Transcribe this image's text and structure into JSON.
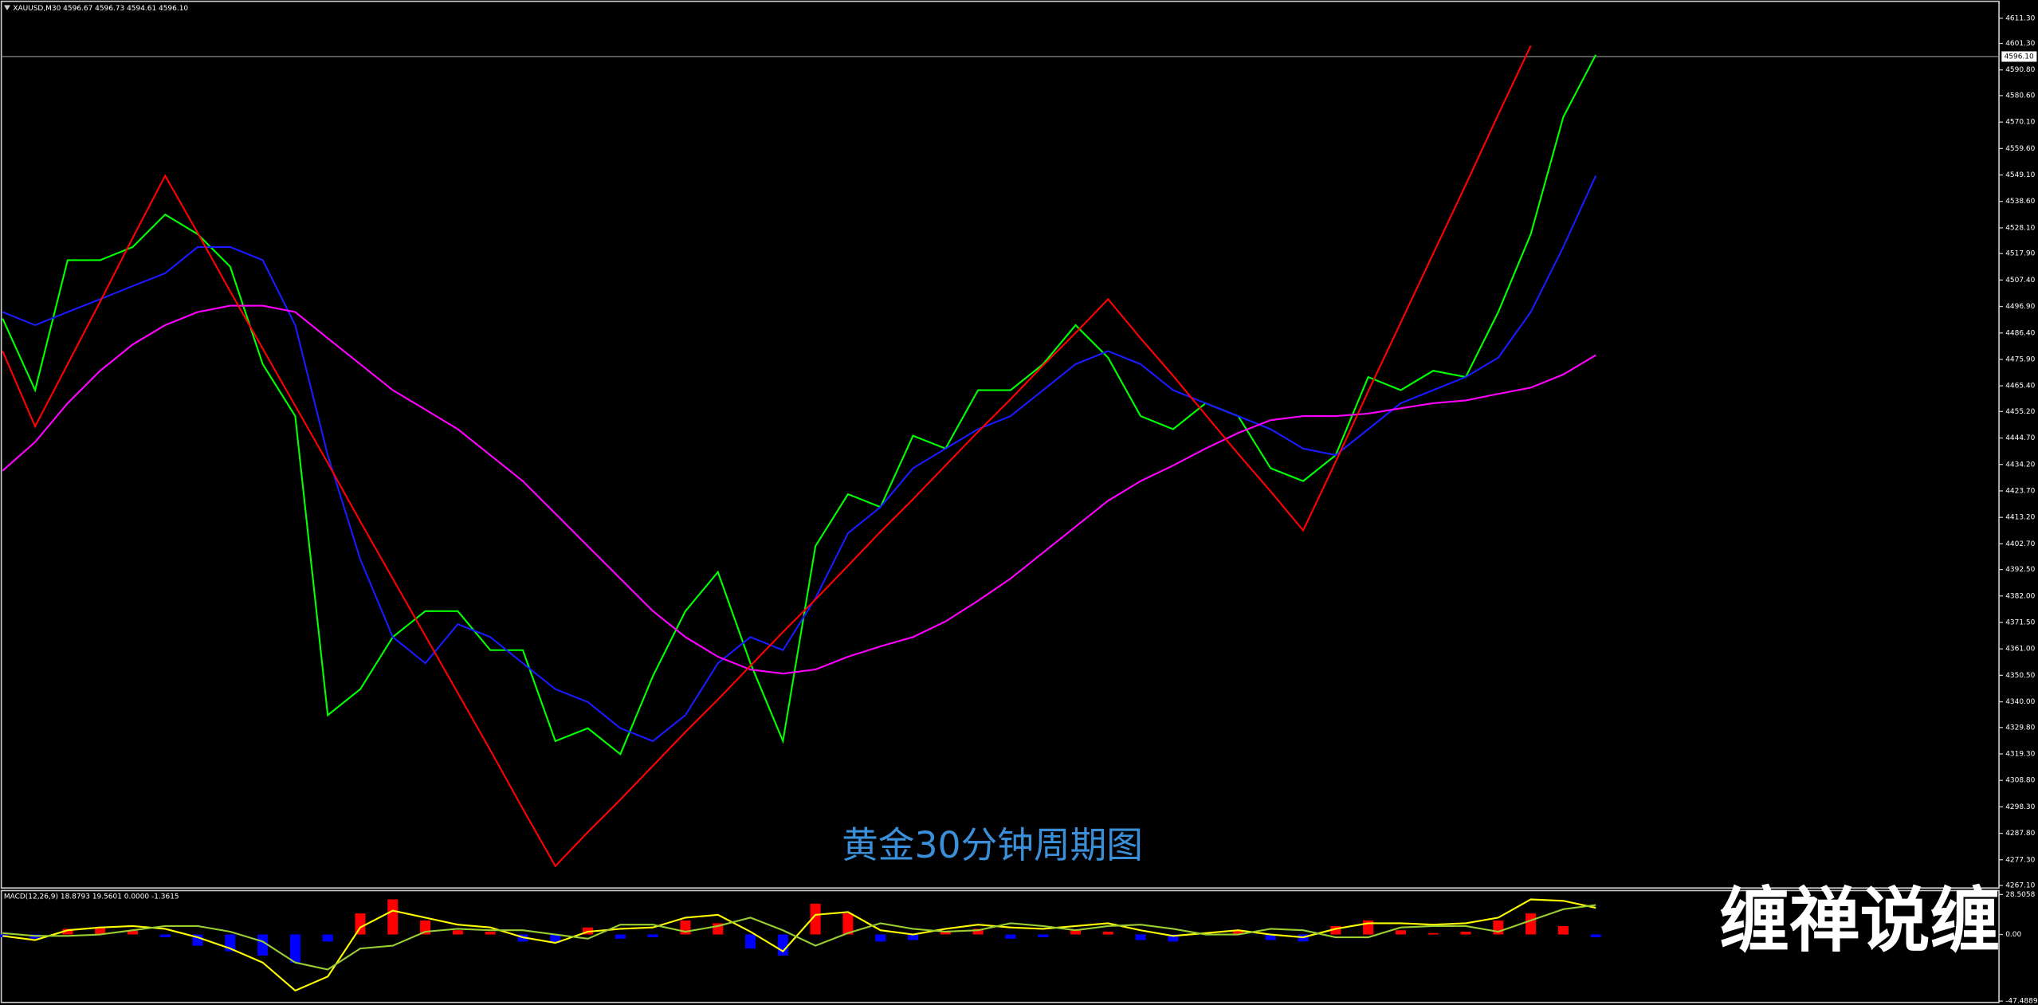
{
  "chart_data": [
    {
      "type": "line",
      "title": "XAUUSD,M30  4596.67 4596.73 4594.61 4596.10",
      "annotation": "黄金30分钟周期图",
      "ylim": [
        4266.1,
        4617.0
      ],
      "yticks": [
        {
          "value": 4611.3,
          "label": "4611.30"
        },
        {
          "value": 4601.3,
          "label": "4601.30"
        },
        {
          "value": 4590.8,
          "label": "4590.80"
        },
        {
          "value": 4580.6,
          "label": "4580.60"
        },
        {
          "value": 4570.1,
          "label": "4570.10"
        },
        {
          "value": 4559.6,
          "label": "4559.60"
        },
        {
          "value": 4549.1,
          "label": "4549.10"
        },
        {
          "value": 4538.6,
          "label": "4538.60"
        },
        {
          "value": 4528.1,
          "label": "4528.10"
        },
        {
          "value": 4517.9,
          "label": "4517.90"
        },
        {
          "value": 4507.4,
          "label": "4507.40"
        },
        {
          "value": 4496.9,
          "label": "4496.90"
        },
        {
          "value": 4486.4,
          "label": "4486.40"
        },
        {
          "value": 4475.9,
          "label": "4475.90"
        },
        {
          "value": 4465.4,
          "label": "4465.40"
        },
        {
          "value": 4455.2,
          "label": "4455.20"
        },
        {
          "value": 4444.7,
          "label": "4444.70"
        },
        {
          "value": 4434.2,
          "label": "4434.20"
        },
        {
          "value": 4423.7,
          "label": "4423.70"
        },
        {
          "value": 4413.2,
          "label": "4413.20"
        },
        {
          "value": 4402.7,
          "label": "4402.70"
        },
        {
          "value": 4392.5,
          "label": "4392.50"
        },
        {
          "value": 4382,
          "label": "4382.00"
        },
        {
          "value": 4371.5,
          "label": "4371.50"
        },
        {
          "value": 4361,
          "label": "4361.00"
        },
        {
          "value": 4350.5,
          "label": "4350.50"
        },
        {
          "value": 4340,
          "label": "4340.00"
        },
        {
          "value": 4329.8,
          "label": "4329.80"
        },
        {
          "value": 4319.3,
          "label": "4319.30"
        },
        {
          "value": 4308.8,
          "label": "4308.80"
        },
        {
          "value": 4298.3,
          "label": "4298.30"
        },
        {
          "value": 4287.8,
          "label": "4287.80"
        },
        {
          "value": 4277.3,
          "label": "4277.30"
        },
        {
          "value": 4267.1,
          "label": "4267.10"
        }
      ],
      "price_line": {
        "value": 4596.1,
        "label": "4596.10"
      },
      "series": [
        {
          "color": "#00ff00",
          "values": [
            4492.1,
            4463.7,
            4515.3,
            4515.3,
            4520.5,
            4533.4,
            4525.6,
            4512.7,
            4474.0,
            4453.4,
            4334.7,
            4345.0,
            4365.7,
            4376.0,
            4376.0,
            4360.5,
            4360.5,
            4324.4,
            4329.5,
            4319.2,
            4350.2,
            4376.0,
            4391.5,
            4355.3,
            4324.4,
            4401.8,
            4422.4,
            4417.3,
            4445.6,
            4440.5,
            4463.7,
            4463.7,
            4474.0,
            4489.5,
            4476.6,
            4453.4,
            4448.2,
            4458.5,
            4453.4,
            4432.7,
            4427.6,
            4437.9,
            4468.9,
            4463.7,
            4471.4,
            4468.9,
            4494.7,
            4525.6,
            4572.1,
            4596.8
          ]
        },
        {
          "color": "#1a1aff",
          "values": [
            4494.7,
            4489.5,
            4494.7,
            4499.8,
            4505.0,
            4510.1,
            4520.5,
            4520.5,
            4515.3,
            4489.5,
            4437.9,
            4396.6,
            4365.7,
            4355.3,
            4370.8,
            4365.7,
            4355.3,
            4345.0,
            4339.9,
            4329.5,
            4324.4,
            4334.7,
            4355.3,
            4365.7,
            4360.5,
            4381.1,
            4406.9,
            4417.3,
            4432.7,
            4440.5,
            4448.2,
            4453.4,
            4463.7,
            4474.0,
            4479.2,
            4474.0,
            4463.7,
            4458.5,
            4453.4,
            4448.2,
            4440.5,
            4437.9,
            4448.2,
            4458.5,
            4463.7,
            4468.9,
            4476.6,
            4494.7,
            4520.5,
            4548.8
          ]
        },
        {
          "color": "#ff00ff",
          "values": [
            4431.7,
            4443.1,
            4458.5,
            4471.4,
            4481.8,
            4489.5,
            4494.7,
            4497.2,
            4497.2,
            4494.7,
            4484.3,
            4474.0,
            4463.7,
            4456.0,
            4448.2,
            4437.9,
            4427.6,
            4414.7,
            4401.8,
            4388.9,
            4376.0,
            4365.7,
            4357.9,
            4352.8,
            4351.2,
            4352.8,
            4357.9,
            4362.0,
            4365.7,
            4371.9,
            4380.1,
            4388.9,
            4399.2,
            4409.5,
            4419.8,
            4427.6,
            4433.8,
            4440.5,
            4446.7,
            4451.8,
            4453.4,
            4453.4,
            4454.4,
            4456.5,
            4458.5,
            4459.6,
            4462.2,
            4464.7,
            4469.9,
            4477.6
          ]
        },
        {
          "color": "#ff0000",
          "values": [
            4479.2,
            4449.3,
            4474.0,
            4498.8,
            4524.1,
            4548.8,
            4526.1,
            4502.9,
            4480.2,
            4457.5,
            4434.8,
            4411.6,
            4388.9,
            4366.2,
            4343.5,
            4320.8,
            4297.5,
            4274.8,
            4288.3,
            4301.2,
            4314.6,
            4328.0,
            4340.9,
            4354.3,
            4367.7,
            4380.6,
            4394.0,
            4407.5,
            4420.4,
            4433.8,
            4447.2,
            4460.1,
            4473.5,
            4486.4,
            4499.8,
            4484.3,
            4469.4,
            4453.9,
            4438.4,
            4423.5,
            4408.0,
            4435.3,
            4463.2,
            4490.5,
            4517.9,
            4545.2,
            4573.1,
            4600.4,
            null,
            null
          ]
        }
      ]
    },
    {
      "type": "macd",
      "title": "MACD(12,26,9) 18.8793 19.5601 0.0000 -1.3615",
      "ylim": [
        -47.4889,
        28.5058
      ],
      "yticks": [
        28.5058,
        {
          "value": 0,
          "label": "0.00"
        },
        -47.4889
      ],
      "histogram": {
        "color": "#ff0000",
        "negative_color": "#0000ff",
        "values": [
          -2,
          -3,
          4,
          5,
          3,
          -2,
          -8,
          -12,
          -15,
          -20,
          -5,
          15,
          25,
          10,
          3,
          2,
          -5,
          -6,
          5,
          -3,
          -2,
          10,
          8,
          -10,
          -15,
          22,
          15,
          -5,
          -4,
          2,
          4,
          -3,
          -2,
          3,
          2,
          -4,
          -5,
          1,
          3,
          -4,
          -5,
          6,
          10,
          3,
          1,
          2,
          10,
          15,
          6,
          -2
        ]
      },
      "series": [
        {
          "color": "#ffff00",
          "values": [
            -1,
            -4,
            3,
            5,
            6,
            4,
            -2,
            -10,
            -20,
            -40,
            -30,
            5,
            17,
            12,
            7,
            5,
            -2,
            -6,
            2,
            4,
            5,
            12,
            14,
            2,
            -12,
            14,
            16,
            3,
            0,
            4,
            7,
            5,
            4,
            6,
            8,
            3,
            -1,
            1,
            3,
            0,
            -2,
            4,
            8,
            8,
            7,
            8,
            12,
            25,
            24,
            19
          ]
        },
        {
          "color": "#9acd32",
          "values": [
            1,
            -1,
            -1,
            0,
            3,
            6,
            6,
            2,
            -5,
            -20,
            -25,
            -10,
            -8,
            2,
            4,
            3,
            3,
            0,
            -3,
            7,
            7,
            2,
            6,
            12,
            3,
            -8,
            1,
            8,
            4,
            2,
            3,
            8,
            6,
            3,
            6,
            7,
            4,
            0,
            0,
            4,
            3,
            -2,
            -2,
            5,
            6,
            6,
            2,
            10,
            18,
            21
          ]
        }
      ]
    }
  ],
  "watermark": "缠禅说缠"
}
